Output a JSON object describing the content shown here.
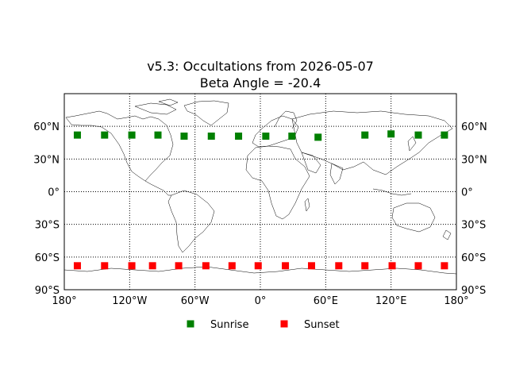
{
  "chart_data": {
    "type": "scatter",
    "title": "v5.3: Occultations from 2026-05-07",
    "subtitle": "Beta Angle = -20.4",
    "xlim": [
      -180,
      180
    ],
    "ylim": [
      -90,
      90
    ],
    "grid": true,
    "background": "world-coastline-map",
    "x_ticks": [
      {
        "value": -180,
        "label": "180°"
      },
      {
        "value": -120,
        "label": "120°W"
      },
      {
        "value": -60,
        "label": "60°W"
      },
      {
        "value": 0,
        "label": "0°"
      },
      {
        "value": 60,
        "label": "60°E"
      },
      {
        "value": 120,
        "label": "120°E"
      },
      {
        "value": 180,
        "label": "180°"
      }
    ],
    "y_ticks": [
      {
        "value": 60,
        "label": "60°N"
      },
      {
        "value": 30,
        "label": "30°N"
      },
      {
        "value": 0,
        "label": "0°"
      },
      {
        "value": -30,
        "label": "30°S"
      },
      {
        "value": -60,
        "label": "60°S"
      },
      {
        "value": -90,
        "label": "90°S"
      }
    ],
    "legend_position": "bottom-center",
    "series": [
      {
        "name": "Sunrise",
        "color": "#008000",
        "marker": "square",
        "points": [
          [
            -168,
            52
          ],
          [
            -143,
            52
          ],
          [
            -118,
            52
          ],
          [
            -94,
            52
          ],
          [
            -70,
            51
          ],
          [
            -45,
            51
          ],
          [
            -20,
            51
          ],
          [
            5,
            51
          ],
          [
            29,
            51
          ],
          [
            53,
            50
          ],
          [
            96,
            52
          ],
          [
            120,
            53
          ],
          [
            145,
            52
          ],
          [
            169,
            52
          ]
        ]
      },
      {
        "name": "Sunset",
        "color": "#ff0000",
        "marker": "square",
        "points": [
          [
            -168,
            -68
          ],
          [
            -143,
            -68
          ],
          [
            -118,
            -68
          ],
          [
            -99,
            -68
          ],
          [
            -75,
            -68
          ],
          [
            -50,
            -68
          ],
          [
            -26,
            -68
          ],
          [
            -2,
            -68
          ],
          [
            23,
            -68
          ],
          [
            47,
            -68
          ],
          [
            72,
            -68
          ],
          [
            96,
            -68
          ],
          [
            121,
            -68
          ],
          [
            145,
            -68
          ],
          [
            169,
            -68
          ]
        ]
      }
    ]
  }
}
